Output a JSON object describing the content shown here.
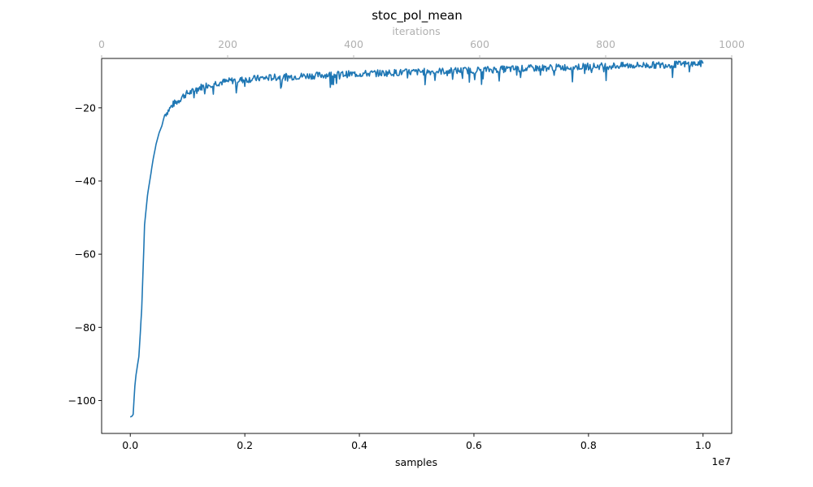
{
  "chart_data": {
    "type": "line",
    "title": "stoc_pol_mean",
    "xlabel": "samples",
    "x_offset_label": "1e7",
    "x_axis_scale": 10000000,
    "xlim": [
      -0.05,
      1.05
    ],
    "x_ticks": [
      0.0,
      0.2,
      0.4,
      0.6,
      0.8,
      1.0
    ],
    "x_tick_labels": [
      "0.0",
      "0.2",
      "0.4",
      "0.6",
      "0.8",
      "1.0"
    ],
    "ylim": [
      -109,
      -6.5
    ],
    "y_ticks": [
      -100,
      -80,
      -60,
      -40,
      -20
    ],
    "y_tick_labels": [
      "−100",
      "−80",
      "−60",
      "−40",
      "−20"
    ],
    "secondary_x_axis": {
      "label": "iterations",
      "lim": [
        0,
        1000
      ],
      "ticks": [
        0,
        200,
        400,
        600,
        800,
        1000
      ],
      "tick_labels": [
        "0",
        "200",
        "400",
        "600",
        "800",
        "1000"
      ],
      "color": "#b0b0b0"
    },
    "series": [
      {
        "color": "#1f77b4",
        "x": [
          0.0,
          0.003,
          0.005,
          0.008,
          0.01,
          0.015,
          0.02,
          0.025,
          0.03,
          0.035,
          0.04,
          0.045,
          0.05,
          0.055,
          0.06,
          0.065,
          0.07,
          0.075,
          0.08,
          0.085,
          0.09,
          0.095,
          0.1,
          0.11,
          0.12,
          0.13,
          0.14,
          0.15,
          0.16,
          0.17,
          0.18,
          0.19,
          0.2,
          0.22,
          0.24,
          0.26,
          0.28,
          0.3,
          0.32,
          0.34,
          0.36,
          0.38,
          0.4,
          0.42,
          0.44,
          0.46,
          0.48,
          0.5,
          0.52,
          0.54,
          0.56,
          0.58,
          0.6,
          0.62,
          0.64,
          0.66,
          0.68,
          0.7,
          0.72,
          0.74,
          0.76,
          0.78,
          0.8,
          0.82,
          0.84,
          0.86,
          0.88,
          0.9,
          0.92,
          0.94,
          0.96,
          0.98,
          1.0
        ],
        "y": [
          -104.5,
          -104.3,
          -103.8,
          -96,
          -93,
          -88,
          -75,
          -52,
          -44,
          -39,
          -34,
          -30,
          -27,
          -25,
          -22,
          -21,
          -20,
          -19,
          -18.5,
          -18,
          -17,
          -16.5,
          -16,
          -15.5,
          -14.5,
          -14,
          -13.5,
          -13.2,
          -13,
          -12.8,
          -12.5,
          -12.4,
          -12.3,
          -12,
          -11.8,
          -11.6,
          -11.5,
          -11.3,
          -11.2,
          -11,
          -10.9,
          -10.8,
          -10.7,
          -10.6,
          -10.5,
          -10.4,
          -10.3,
          -10.2,
          -10.1,
          -10,
          -9.9,
          -9.8,
          -9.7,
          -9.6,
          -9.5,
          -9.4,
          -9.3,
          -9.2,
          -9.1,
          -9.0,
          -8.9,
          -8.8,
          -8.7,
          -8.6,
          -8.55,
          -8.5,
          -8.4,
          -8.35,
          -8.3,
          -8.2,
          -8.1,
          -8.0,
          -7.9
        ]
      }
    ]
  }
}
